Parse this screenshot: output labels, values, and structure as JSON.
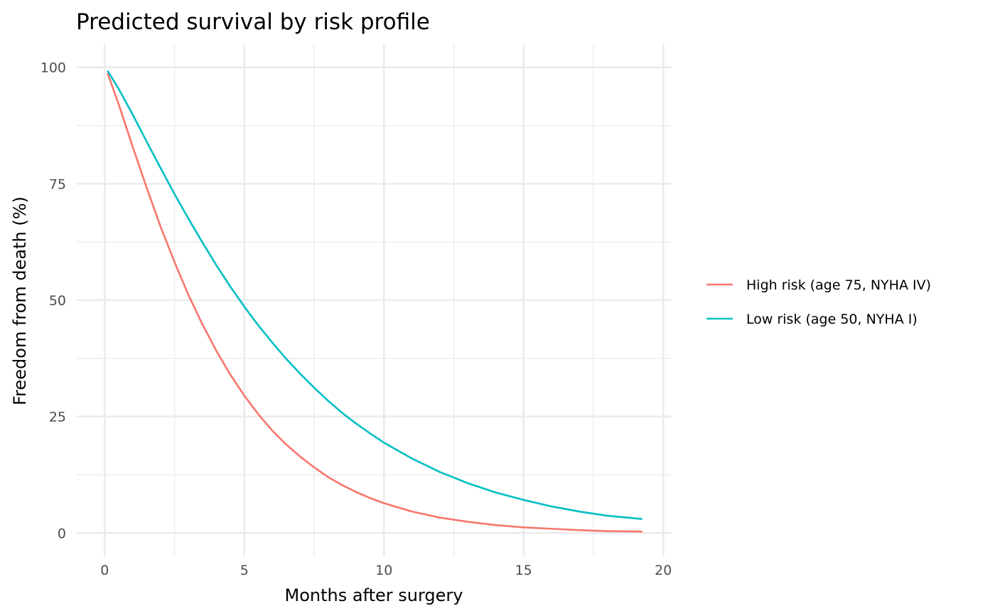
{
  "chart_data": {
    "type": "line",
    "title": "Predicted survival by risk profile",
    "xlabel": "Months after surgery",
    "ylabel": "Freedom from death (%)",
    "xlim": [
      -1.0,
      20.3
    ],
    "ylim": [
      -5.0,
      105.0
    ],
    "x_ticks": [
      0,
      5,
      10,
      15,
      20
    ],
    "x_tick_labels": [
      "0",
      "5",
      "10",
      "15",
      "20"
    ],
    "y_ticks": [
      0,
      25,
      50,
      75,
      100
    ],
    "y_tick_labels": [
      "0",
      "25",
      "50",
      "75",
      "100"
    ],
    "x_minor_ticks": [
      2.5,
      7.5,
      12.5,
      17.5
    ],
    "y_minor_ticks": [
      12.5,
      37.5,
      62.5,
      87.5
    ],
    "grid": true,
    "legend_position": "right",
    "x": [
      0.1,
      0.5,
      1,
      1.5,
      2,
      2.5,
      3,
      3.5,
      4,
      4.5,
      5,
      5.5,
      6,
      6.5,
      7,
      7.5,
      8,
      8.5,
      9,
      9.5,
      10,
      11,
      12,
      13,
      14,
      15,
      16,
      17,
      18,
      19.25
    ],
    "series": [
      {
        "name": "High risk (age 75, NYHA IV)",
        "color": "#F8766D",
        "values": [
          98.8,
          92.1,
          83.0,
          74.2,
          65.8,
          58.2,
          51.1,
          44.8,
          39.1,
          34.0,
          29.5,
          25.5,
          22.0,
          19.0,
          16.4,
          14.1,
          12.0,
          10.3,
          8.8,
          7.5,
          6.4,
          4.6,
          3.3,
          2.4,
          1.7,
          1.2,
          0.9,
          0.6,
          0.4,
          0.3
        ]
      },
      {
        "name": "Low risk (age 50, NYHA I)",
        "color": "#00BFC4",
        "values": [
          99.3,
          95.4,
          89.9,
          84.1,
          78.4,
          72.8,
          67.5,
          62.4,
          57.5,
          52.9,
          48.6,
          44.6,
          40.9,
          37.4,
          34.2,
          31.2,
          28.4,
          25.8,
          23.5,
          21.4,
          19.4,
          16.0,
          13.1,
          10.7,
          8.7,
          7.1,
          5.7,
          4.6,
          3.7,
          3.0
        ]
      }
    ]
  }
}
